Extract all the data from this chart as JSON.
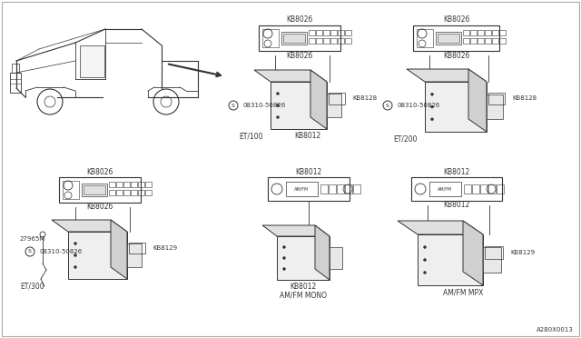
{
  "bg_color": "#ffffff",
  "lc": "#333333",
  "lc2": "#555555",
  "watermark": "A280X0013",
  "labels": {
    "et100_radio_top": "KB8026",
    "et100_radio_bot": "KB8026",
    "et100_screw": "08310-50826",
    "et100_conn": "KB8128",
    "et100_label": "ET/100",
    "et100_box": "KB8012",
    "et200_radio_top": "KB8026",
    "et200_radio_bot": "KB8026",
    "et200_screw": "08310-50826",
    "et200_conn": "KB8128",
    "et200_label": "ET/200",
    "et300_radio_top": "KB8026",
    "et300_radio_bot": "KB8026",
    "et300_screw": "08310-50826",
    "et300_conn": "KB8129",
    "et300_label": "ET/300",
    "et300_extra": "27965M",
    "mono_radio_top": "KB8012",
    "mono_box_label": "KB8012",
    "mono_label": "AM/FM MONO",
    "mpx_radio_top": "KB8012",
    "mpx_radio_bot": "KB8012",
    "mpx_conn": "KB8129",
    "mpx_label": "AM/FM MPX"
  }
}
